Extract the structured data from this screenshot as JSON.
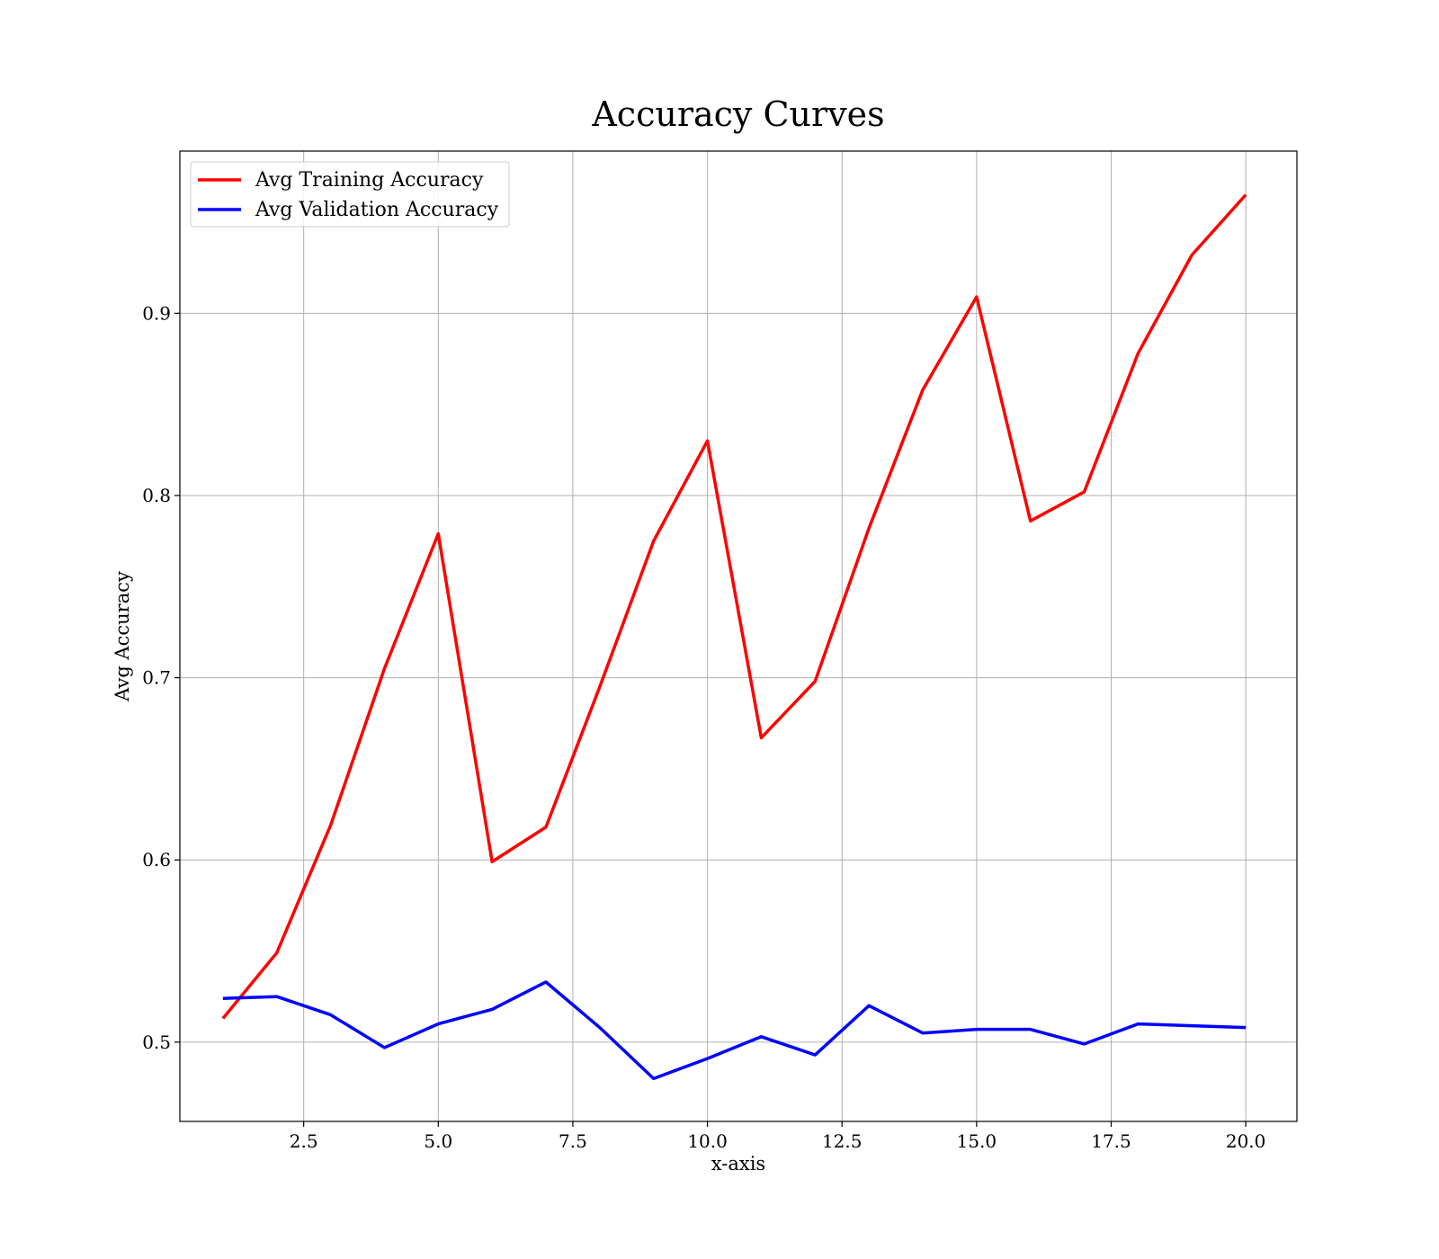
{
  "chart_data": {
    "type": "line",
    "title": "Accuracy Curves",
    "xlabel": "x-axis",
    "ylabel": "Avg Accuracy",
    "xlim": [
      0.2,
      20.95
    ],
    "ylim": [
      0.4565,
      0.989
    ],
    "xticks": [
      2.5,
      5.0,
      7.5,
      10.0,
      12.5,
      15.0,
      17.5,
      20.0
    ],
    "xtick_labels": [
      "2.5",
      "5.0",
      "7.5",
      "10.0",
      "12.5",
      "15.0",
      "17.5",
      "20.0"
    ],
    "yticks": [
      0.5,
      0.6,
      0.7,
      0.8,
      0.9
    ],
    "ytick_labels": [
      "0.5",
      "0.6",
      "0.7",
      "0.8",
      "0.9"
    ],
    "grid": true,
    "legend_position": "top-left",
    "x": [
      1,
      2,
      3,
      4,
      5,
      6,
      7,
      8,
      9,
      10,
      11,
      12,
      13,
      14,
      15,
      16,
      17,
      18,
      19,
      20
    ],
    "series": [
      {
        "name": "Avg Training Accuracy",
        "color": "#ff0000",
        "values": [
          0.513,
          0.549,
          0.619,
          0.705,
          0.779,
          0.599,
          0.618,
          0.695,
          0.775,
          0.83,
          0.667,
          0.698,
          0.782,
          0.858,
          0.909,
          0.786,
          0.802,
          0.878,
          0.932,
          0.965
        ]
      },
      {
        "name": "Avg Validation Accuracy",
        "color": "#0000ff",
        "values": [
          0.524,
          0.525,
          0.515,
          0.497,
          0.51,
          0.518,
          0.533,
          0.508,
          0.48,
          0.491,
          0.503,
          0.493,
          0.52,
          0.505,
          0.507,
          0.507,
          0.499,
          0.51,
          0.509,
          0.508
        ]
      }
    ]
  }
}
